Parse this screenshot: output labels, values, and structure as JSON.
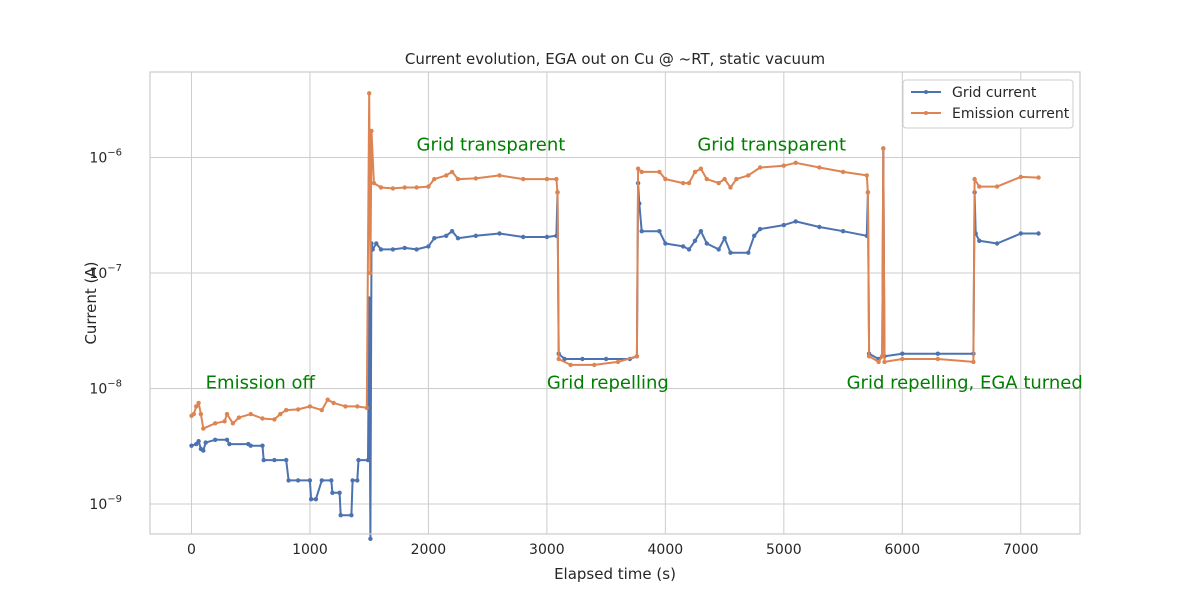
{
  "chart_data": {
    "type": "line",
    "title": "Current evolution, EGA out on Cu @ ~RT, static vacuum",
    "xlabel": "Elapsed time (s)",
    "ylabel": "Current (A)",
    "xlim": [
      -350,
      7500
    ],
    "ylim": [
      5.5e-10,
      5.5e-06
    ],
    "yscale": "log",
    "grid": true,
    "legend_position": "top-right",
    "xticks": [
      0,
      1000,
      2000,
      3000,
      4000,
      5000,
      6000,
      7000
    ],
    "yticks": [
      {
        "value": 1e-09,
        "base": "10",
        "exp": "−9"
      },
      {
        "value": 1e-08,
        "base": "10",
        "exp": "−8"
      },
      {
        "value": 1e-07,
        "base": "10",
        "exp": "−7"
      },
      {
        "value": 1e-06,
        "base": "10",
        "exp": "−6"
      }
    ],
    "series": [
      {
        "name": "Grid current",
        "color": "#4c72b0",
        "points": [
          [
            0,
            3.2e-09
          ],
          [
            40,
            3.3e-09
          ],
          [
            60,
            3.5e-09
          ],
          [
            80,
            3e-09
          ],
          [
            100,
            2.9e-09
          ],
          [
            120,
            3.4e-09
          ],
          [
            200,
            3.6e-09
          ],
          [
            300,
            3.6e-09
          ],
          [
            320,
            3.3e-09
          ],
          [
            480,
            3.3e-09
          ],
          [
            500,
            3.2e-09
          ],
          [
            600,
            3.2e-09
          ],
          [
            610,
            2.4e-09
          ],
          [
            700,
            2.4e-09
          ],
          [
            800,
            2.4e-09
          ],
          [
            820,
            1.6e-09
          ],
          [
            900,
            1.6e-09
          ],
          [
            1000,
            1.6e-09
          ],
          [
            1010,
            1.1e-09
          ],
          [
            1050,
            1.1e-09
          ],
          [
            1100,
            1.6e-09
          ],
          [
            1180,
            1.6e-09
          ],
          [
            1190,
            1.25e-09
          ],
          [
            1250,
            1.25e-09
          ],
          [
            1260,
            8e-10
          ],
          [
            1350,
            8e-10
          ],
          [
            1360,
            1.6e-09
          ],
          [
            1400,
            1.6e-09
          ],
          [
            1410,
            2.4e-09
          ],
          [
            1490,
            2.4e-09
          ],
          [
            1500,
            6e-08
          ],
          [
            1510,
            5e-10
          ],
          [
            1520,
            1.8e-07
          ],
          [
            1530,
            1.6e-07
          ],
          [
            1560,
            1.8e-07
          ],
          [
            1600,
            1.6e-07
          ],
          [
            1700,
            1.6e-07
          ],
          [
            1800,
            1.65e-07
          ],
          [
            1900,
            1.6e-07
          ],
          [
            2000,
            1.7e-07
          ],
          [
            2050,
            2e-07
          ],
          [
            2150,
            2.1e-07
          ],
          [
            2200,
            2.3e-07
          ],
          [
            2250,
            2e-07
          ],
          [
            2400,
            2.1e-07
          ],
          [
            2600,
            2.2e-07
          ],
          [
            2800,
            2.05e-07
          ],
          [
            3000,
            2.05e-07
          ],
          [
            3080,
            2.1e-07
          ],
          [
            3090,
            5e-07
          ],
          [
            3100,
            2e-08
          ],
          [
            3150,
            1.8e-08
          ],
          [
            3300,
            1.8e-08
          ],
          [
            3500,
            1.8e-08
          ],
          [
            3700,
            1.8e-08
          ],
          [
            3760,
            1.9e-08
          ],
          [
            3770,
            6e-07
          ],
          [
            3780,
            4e-07
          ],
          [
            3800,
            2.3e-07
          ],
          [
            3950,
            2.3e-07
          ],
          [
            4000,
            1.8e-07
          ],
          [
            4150,
            1.7e-07
          ],
          [
            4200,
            1.6e-07
          ],
          [
            4250,
            1.9e-07
          ],
          [
            4300,
            2.3e-07
          ],
          [
            4350,
            1.8e-07
          ],
          [
            4450,
            1.6e-07
          ],
          [
            4500,
            2e-07
          ],
          [
            4550,
            1.5e-07
          ],
          [
            4700,
            1.5e-07
          ],
          [
            4750,
            2.1e-07
          ],
          [
            4800,
            2.4e-07
          ],
          [
            5000,
            2.6e-07
          ],
          [
            5100,
            2.8e-07
          ],
          [
            5300,
            2.5e-07
          ],
          [
            5500,
            2.3e-07
          ],
          [
            5700,
            2.1e-07
          ],
          [
            5710,
            5e-07
          ],
          [
            5720,
            2e-08
          ],
          [
            5800,
            1.8e-08
          ],
          [
            5830,
            1.9e-08
          ],
          [
            5840,
            1.2e-06
          ],
          [
            5850,
            1.9e-08
          ],
          [
            6000,
            2e-08
          ],
          [
            6300,
            2e-08
          ],
          [
            6600,
            2e-08
          ],
          [
            6610,
            5e-07
          ],
          [
            6620,
            2.2e-07
          ],
          [
            6650,
            1.9e-07
          ],
          [
            6800,
            1.8e-07
          ],
          [
            7000,
            2.2e-07
          ],
          [
            7150,
            2.2e-07
          ]
        ]
      },
      {
        "name": "Emission current",
        "color": "#dd8452",
        "points": [
          [
            0,
            5.8e-09
          ],
          [
            20,
            6e-09
          ],
          [
            40,
            7e-09
          ],
          [
            60,
            7.5e-09
          ],
          [
            80,
            6e-09
          ],
          [
            100,
            4.5e-09
          ],
          [
            200,
            5e-09
          ],
          [
            280,
            5.2e-09
          ],
          [
            300,
            6e-09
          ],
          [
            350,
            5e-09
          ],
          [
            400,
            5.6e-09
          ],
          [
            500,
            6e-09
          ],
          [
            600,
            5.5e-09
          ],
          [
            700,
            5.4e-09
          ],
          [
            750,
            6e-09
          ],
          [
            800,
            6.5e-09
          ],
          [
            900,
            6.6e-09
          ],
          [
            1000,
            7e-09
          ],
          [
            1100,
            6.5e-09
          ],
          [
            1150,
            8e-09
          ],
          [
            1200,
            7.5e-09
          ],
          [
            1300,
            7e-09
          ],
          [
            1400,
            7e-09
          ],
          [
            1480,
            6.8e-09
          ],
          [
            1500,
            3.6e-06
          ],
          [
            1510,
            1e-07
          ],
          [
            1520,
            1.7e-06
          ],
          [
            1540,
            6e-07
          ],
          [
            1600,
            5.5e-07
          ],
          [
            1700,
            5.4e-07
          ],
          [
            1800,
            5.5e-07
          ],
          [
            1900,
            5.5e-07
          ],
          [
            2000,
            5.6e-07
          ],
          [
            2050,
            6.5e-07
          ],
          [
            2150,
            7e-07
          ],
          [
            2200,
            7.5e-07
          ],
          [
            2250,
            6.5e-07
          ],
          [
            2400,
            6.6e-07
          ],
          [
            2600,
            7e-07
          ],
          [
            2800,
            6.5e-07
          ],
          [
            3000,
            6.5e-07
          ],
          [
            3080,
            6.5e-07
          ],
          [
            3090,
            5e-07
          ],
          [
            3100,
            1.8e-08
          ],
          [
            3200,
            1.6e-08
          ],
          [
            3400,
            1.6e-08
          ],
          [
            3600,
            1.7e-08
          ],
          [
            3760,
            1.9e-08
          ],
          [
            3770,
            8e-07
          ],
          [
            3800,
            7.5e-07
          ],
          [
            3950,
            7.5e-07
          ],
          [
            4000,
            6.5e-07
          ],
          [
            4150,
            6e-07
          ],
          [
            4200,
            6e-07
          ],
          [
            4250,
            7.5e-07
          ],
          [
            4300,
            8e-07
          ],
          [
            4350,
            6.5e-07
          ],
          [
            4450,
            6e-07
          ],
          [
            4500,
            6.5e-07
          ],
          [
            4550,
            5.5e-07
          ],
          [
            4600,
            6.5e-07
          ],
          [
            4700,
            7e-07
          ],
          [
            4800,
            8.2e-07
          ],
          [
            5000,
            8.5e-07
          ],
          [
            5100,
            9e-07
          ],
          [
            5300,
            8.2e-07
          ],
          [
            5500,
            7.5e-07
          ],
          [
            5700,
            7e-07
          ],
          [
            5710,
            5e-07
          ],
          [
            5720,
            1.9e-08
          ],
          [
            5800,
            1.7e-08
          ],
          [
            5830,
            1.9e-08
          ],
          [
            5840,
            1.2e-06
          ],
          [
            5850,
            1.7e-08
          ],
          [
            6000,
            1.8e-08
          ],
          [
            6300,
            1.8e-08
          ],
          [
            6600,
            1.7e-08
          ],
          [
            6610,
            6.5e-07
          ],
          [
            6650,
            5.6e-07
          ],
          [
            6800,
            5.6e-07
          ],
          [
            7000,
            6.8e-07
          ],
          [
            7150,
            6.7e-07
          ]
        ]
      }
    ],
    "annotations": [
      {
        "text": "Emission off",
        "x": 120,
        "y": 1e-08
      },
      {
        "text": "Grid transparent",
        "x": 1900,
        "y": 1.15e-06
      },
      {
        "text": "Grid repelling",
        "x": 3000,
        "y": 1e-08
      },
      {
        "text": "Grid transparent",
        "x": 4270,
        "y": 1.15e-06
      },
      {
        "text": "Grid repelling, EGA turned",
        "x": 5530,
        "y": 1e-08
      }
    ]
  }
}
